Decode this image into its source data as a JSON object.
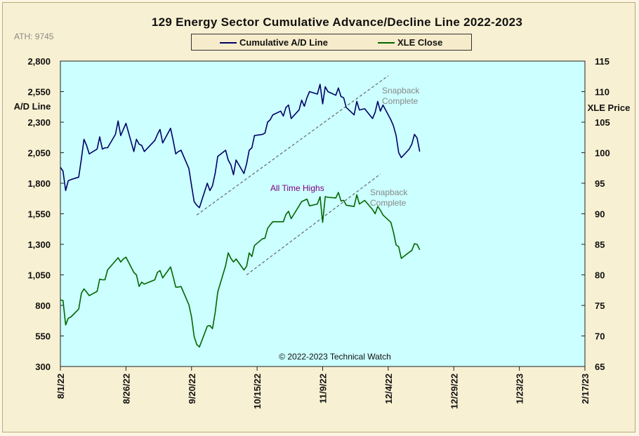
{
  "chart_data": {
    "type": "line",
    "title": "129 Energy Sector Cumulative Advance/Decline Line 2022-2023",
    "ath_label": "ATH: 9745",
    "credit": "© 2022-2023  Technical Watch",
    "y_left_label": "A/D Line",
    "y_right_label": "XLE Price",
    "y_left_range": [
      300,
      2800
    ],
    "y_right_range": [
      65,
      115
    ],
    "y_left_ticks": [
      "2,800",
      "2,550",
      "2,300",
      "2,050",
      "1,800",
      "1,550",
      "1,300",
      "1,050",
      "800",
      "550",
      "300"
    ],
    "y_right_ticks": [
      "115",
      "110",
      "105",
      "100",
      "95",
      "90",
      "85",
      "80",
      "75",
      "70",
      "65"
    ],
    "x_ticks": [
      "8/1/22",
      "8/26/22",
      "9/20/22",
      "10/15/22",
      "11/9/22",
      "12/4/22",
      "12/29/22",
      "1/23/23",
      "2/17/23"
    ],
    "x_range": [
      "2022-08-01",
      "2023-02-17"
    ],
    "legend_position": "top-center",
    "grid": false,
    "plot_background": "#ccffff",
    "series": [
      {
        "name": "Cumulative A/D Line",
        "axis": "left",
        "color": "#000066",
        "dates": [
          "2022-08-01",
          "2022-08-02",
          "2022-08-03",
          "2022-08-04",
          "2022-08-05",
          "2022-08-08",
          "2022-08-09",
          "2022-08-10",
          "2022-08-11",
          "2022-08-12",
          "2022-08-15",
          "2022-08-16",
          "2022-08-17",
          "2022-08-18",
          "2022-08-19",
          "2022-08-22",
          "2022-08-23",
          "2022-08-24",
          "2022-08-25",
          "2022-08-26",
          "2022-08-29",
          "2022-08-30",
          "2022-08-31",
          "2022-09-01",
          "2022-09-02",
          "2022-09-06",
          "2022-09-07",
          "2022-09-08",
          "2022-09-09",
          "2022-09-12",
          "2022-09-13",
          "2022-09-14",
          "2022-09-15",
          "2022-09-16",
          "2022-09-19",
          "2022-09-20",
          "2022-09-21",
          "2022-09-22",
          "2022-09-23",
          "2022-09-26",
          "2022-09-27",
          "2022-09-28",
          "2022-09-29",
          "2022-09-30",
          "2022-10-03",
          "2022-10-04",
          "2022-10-05",
          "2022-10-06",
          "2022-10-07",
          "2022-10-10",
          "2022-10-11",
          "2022-10-12",
          "2022-10-13",
          "2022-10-14",
          "2022-10-17",
          "2022-10-18",
          "2022-10-19",
          "2022-10-20",
          "2022-10-21",
          "2022-10-24",
          "2022-10-25",
          "2022-10-26",
          "2022-10-27",
          "2022-10-28",
          "2022-10-31",
          "2022-11-01",
          "2022-11-02",
          "2022-11-03",
          "2022-11-04",
          "2022-11-07",
          "2022-11-08",
          "2022-11-09",
          "2022-11-10",
          "2022-11-11",
          "2022-11-14",
          "2022-11-15",
          "2022-11-16",
          "2022-11-17",
          "2022-11-18",
          "2022-11-21",
          "2022-11-22",
          "2022-11-23",
          "2022-11-25",
          "2022-11-28",
          "2022-11-29",
          "2022-11-30",
          "2022-12-01",
          "2022-12-02",
          "2022-12-05",
          "2022-12-06",
          "2022-12-07",
          "2022-12-08",
          "2022-12-09",
          "2022-12-12",
          "2022-12-13",
          "2022-12-14",
          "2022-12-15",
          "2022-12-16"
        ],
        "values": [
          1930,
          1900,
          1740,
          1820,
          1830,
          1850,
          2000,
          2160,
          2110,
          2040,
          2080,
          2180,
          2080,
          2090,
          2090,
          2200,
          2310,
          2190,
          2240,
          2290,
          2060,
          2160,
          2120,
          2110,
          2060,
          2150,
          2200,
          2240,
          2130,
          2250,
          2150,
          2040,
          2060,
          2070,
          1920,
          1780,
          1650,
          1620,
          1600,
          1800,
          1740,
          1780,
          1880,
          2020,
          2070,
          1990,
          1950,
          1870,
          1990,
          1880,
          1960,
          2070,
          2090,
          2190,
          2200,
          2210,
          2300,
          2320,
          2360,
          2390,
          2350,
          2420,
          2440,
          2330,
          2400,
          2480,
          2430,
          2500,
          2550,
          2530,
          2610,
          2450,
          2590,
          2550,
          2520,
          2580,
          2510,
          2500,
          2420,
          2360,
          2470,
          2400,
          2410,
          2330,
          2380,
          2470,
          2390,
          2440,
          2320,
          2270,
          2190,
          2050,
          2010,
          2080,
          2120,
          2200,
          2170,
          2060
        ]
      },
      {
        "name": "XLE Close",
        "axis": "right",
        "color": "#006600",
        "dates": [
          "2022-08-01",
          "2022-08-02",
          "2022-08-03",
          "2022-08-04",
          "2022-08-05",
          "2022-08-08",
          "2022-08-09",
          "2022-08-10",
          "2022-08-11",
          "2022-08-12",
          "2022-08-15",
          "2022-08-16",
          "2022-08-17",
          "2022-08-18",
          "2022-08-19",
          "2022-08-22",
          "2022-08-23",
          "2022-08-24",
          "2022-08-25",
          "2022-08-26",
          "2022-08-29",
          "2022-08-30",
          "2022-08-31",
          "2022-09-01",
          "2022-09-02",
          "2022-09-06",
          "2022-09-07",
          "2022-09-08",
          "2022-09-09",
          "2022-09-12",
          "2022-09-13",
          "2022-09-14",
          "2022-09-15",
          "2022-09-16",
          "2022-09-19",
          "2022-09-20",
          "2022-09-21",
          "2022-09-22",
          "2022-09-23",
          "2022-09-26",
          "2022-09-27",
          "2022-09-28",
          "2022-09-29",
          "2022-09-30",
          "2022-10-03",
          "2022-10-04",
          "2022-10-05",
          "2022-10-06",
          "2022-10-07",
          "2022-10-10",
          "2022-10-11",
          "2022-10-12",
          "2022-10-13",
          "2022-10-14",
          "2022-10-17",
          "2022-10-18",
          "2022-10-19",
          "2022-10-20",
          "2022-10-21",
          "2022-10-24",
          "2022-10-25",
          "2022-10-26",
          "2022-10-27",
          "2022-10-28",
          "2022-10-31",
          "2022-11-01",
          "2022-11-02",
          "2022-11-03",
          "2022-11-04",
          "2022-11-07",
          "2022-11-08",
          "2022-11-09",
          "2022-11-10",
          "2022-11-11",
          "2022-11-14",
          "2022-11-15",
          "2022-11-16",
          "2022-11-17",
          "2022-11-18",
          "2022-11-21",
          "2022-11-22",
          "2022-11-23",
          "2022-11-25",
          "2022-11-28",
          "2022-11-29",
          "2022-11-30",
          "2022-12-01",
          "2022-12-02",
          "2022-12-05",
          "2022-12-06",
          "2022-12-07",
          "2022-12-08",
          "2022-12-09",
          "2022-12-12",
          "2022-12-13",
          "2022-12-14",
          "2022-12-15",
          "2022-12-16"
        ],
        "values": [
          75.9,
          75.8,
          71.8,
          72.9,
          73.1,
          74.4,
          77.0,
          77.7,
          77.2,
          76.6,
          77.3,
          79.3,
          79.2,
          79.2,
          80.8,
          82.3,
          82.8,
          82.1,
          82.6,
          82.9,
          80.4,
          80.0,
          78.1,
          78.8,
          78.5,
          79.2,
          80.4,
          80.7,
          79.5,
          81.3,
          79.7,
          78.0,
          78.0,
          78.1,
          75.1,
          73.1,
          69.9,
          68.6,
          68.2,
          71.6,
          71.7,
          71.2,
          73.8,
          77.2,
          81.5,
          83.6,
          82.7,
          82.1,
          82.6,
          80.8,
          81.4,
          83.6,
          83.0,
          84.8,
          85.9,
          86.0,
          87.6,
          88.2,
          88.7,
          88.7,
          88.7,
          89.9,
          90.4,
          89.2,
          91.3,
          92.0,
          92.2,
          92.4,
          91.3,
          91.6,
          92.8,
          88.6,
          92.8,
          92.7,
          92.6,
          93.5,
          92.1,
          92.2,
          91.4,
          91.2,
          93.1,
          91.6,
          92.2,
          90.7,
          90.0,
          91.2,
          90.6,
          89.8,
          88.6,
          87.0,
          84.9,
          84.6,
          82.7,
          83.7,
          84.0,
          85.1,
          85.0,
          84.1
        ]
      }
    ],
    "annotations": [
      {
        "text": "Snapback Complete",
        "lines": [
          "Snapback",
          "Complete"
        ],
        "color": "#888888"
      },
      {
        "text": "All Time  Highs",
        "color": "#800080"
      },
      {
        "text": "Snapback Complete",
        "lines": [
          "Snapback",
          "Complete"
        ],
        "color": "#888888"
      }
    ],
    "trend_lines": [
      {
        "axis": "left",
        "start": [
          "2022-09-22",
          1540
        ],
        "end": [
          "2022-12-04",
          2680
        ],
        "style": "dashed"
      },
      {
        "axis": "right",
        "start": [
          "2022-10-11",
          80.0
        ],
        "end": [
          "2022-12-01",
          96.5
        ],
        "style": "dashed"
      }
    ]
  }
}
